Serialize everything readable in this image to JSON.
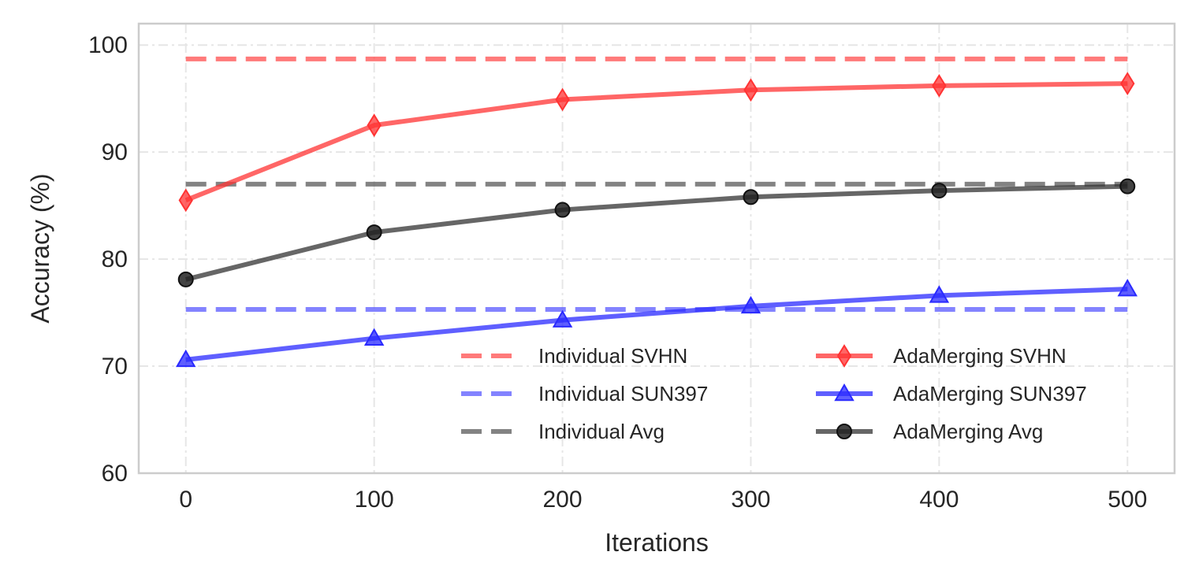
{
  "chart_data": {
    "type": "line",
    "title": "",
    "xlabel": "Iterations",
    "ylabel": "Accuracy (%)",
    "x": [
      0,
      100,
      200,
      300,
      400,
      500
    ],
    "xlim": [
      -25,
      525
    ],
    "ylim": [
      60,
      102
    ],
    "xticks": [
      "0",
      "100",
      "200",
      "300",
      "400",
      "500"
    ],
    "yticks": [
      "60",
      "70",
      "80",
      "90",
      "100"
    ],
    "grid": true,
    "legend_position": "lower-right",
    "series": [
      {
        "name": "Individual SVHN",
        "style": "dashed",
        "color": "#ff4d4d",
        "marker": "none",
        "values": [
          98.7,
          98.7,
          98.7,
          98.7,
          98.7,
          98.7
        ]
      },
      {
        "name": "Individual SUN397",
        "style": "dashed",
        "color": "#5a5aff",
        "marker": "none",
        "values": [
          75.3,
          75.3,
          75.3,
          75.3,
          75.3,
          75.3
        ]
      },
      {
        "name": "Individual Avg",
        "style": "dashed",
        "color": "#595959",
        "marker": "none",
        "values": [
          87.0,
          87.0,
          87.0,
          87.0,
          87.0,
          87.0
        ]
      },
      {
        "name": "AdaMerging SVHN",
        "style": "solid",
        "color": "#ff3333",
        "marker": "diamond",
        "values": [
          85.5,
          92.5,
          94.9,
          95.8,
          96.2,
          96.4
        ]
      },
      {
        "name": "AdaMerging SUN397",
        "style": "solid",
        "color": "#2a2aff",
        "marker": "triangle",
        "values": [
          70.6,
          72.6,
          74.3,
          75.6,
          76.6,
          77.2
        ]
      },
      {
        "name": "AdaMerging Avg",
        "style": "solid",
        "color": "#333333",
        "marker": "circle",
        "values": [
          78.1,
          82.5,
          84.6,
          85.8,
          86.4,
          86.8
        ]
      }
    ]
  }
}
